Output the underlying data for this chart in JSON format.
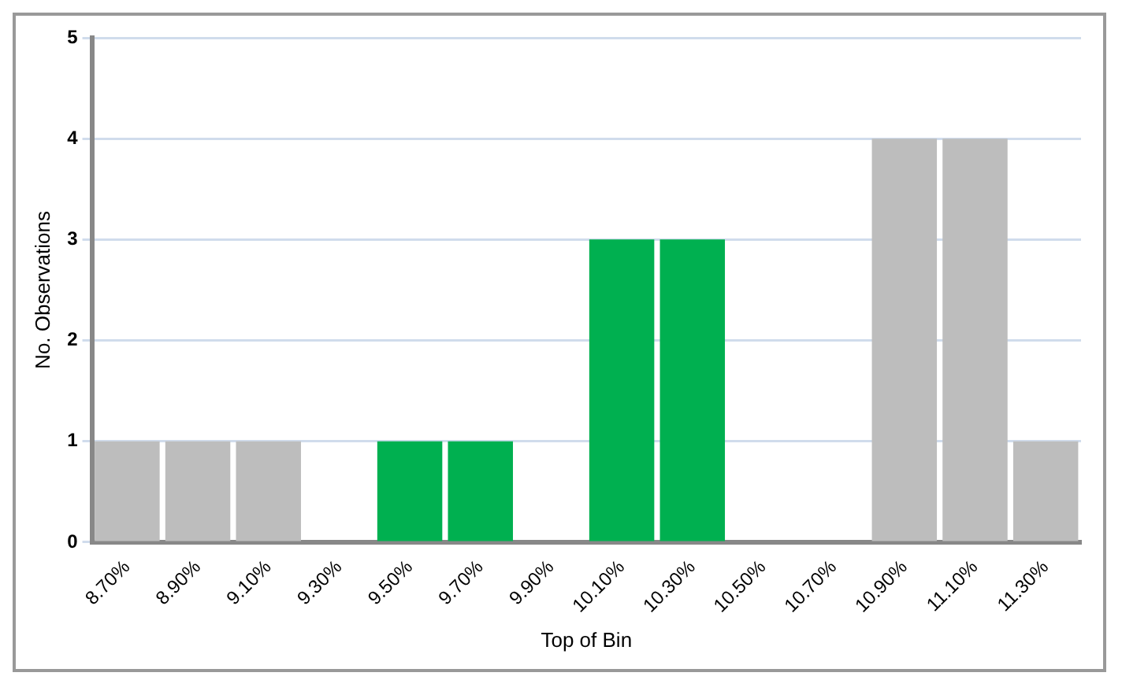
{
  "chart_data": {
    "type": "bar",
    "xlabel": "Top of Bin",
    "ylabel": "No. Observations",
    "categories": [
      "8.70%",
      "8.90%",
      "9.10%",
      "9.30%",
      "9.50%",
      "9.70%",
      "9.90%",
      "10.10%",
      "10.30%",
      "10.50%",
      "10.70%",
      "10.90%",
      "11.10%",
      "11.30%"
    ],
    "values": [
      1,
      1,
      1,
      0,
      1,
      1,
      0,
      3,
      3,
      0,
      0,
      4,
      4,
      1
    ],
    "colors": [
      "#bdbdbd",
      "#bdbdbd",
      "#bdbdbd",
      "#bdbdbd",
      "#00b050",
      "#00b050",
      "#00b050",
      "#00b050",
      "#00b050",
      "#bdbdbd",
      "#bdbdbd",
      "#bdbdbd",
      "#bdbdbd",
      "#bdbdbd"
    ],
    "ylim": [
      0,
      5
    ],
    "yticks": [
      0,
      1,
      2,
      3,
      4,
      5
    ],
    "grid": "y",
    "legend": false
  }
}
